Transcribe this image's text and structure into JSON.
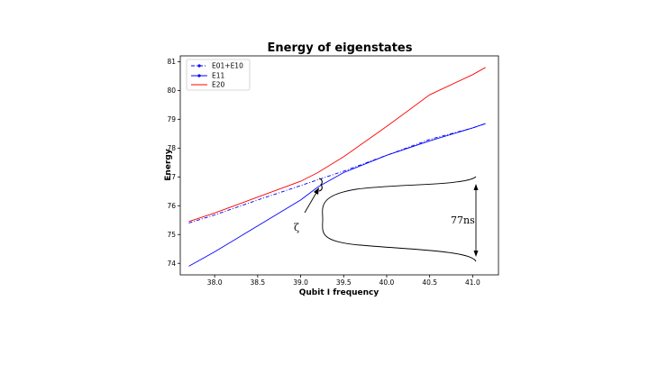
{
  "chart_data": {
    "type": "line",
    "title": "Energy of eigenstates",
    "xlabel": "Qubit I frequency",
    "ylabel": "Energy",
    "xlim": [
      37.6,
      41.3
    ],
    "ylim": [
      73.6,
      81.2
    ],
    "xticks": [
      "38.0",
      "38.5",
      "39.0",
      "39.5",
      "40.0",
      "40.5",
      "41.0"
    ],
    "yticks": [
      "74",
      "75",
      "76",
      "77",
      "78",
      "79",
      "80",
      "81"
    ],
    "legend_position": "top-left",
    "grid": false,
    "series": [
      {
        "name": "E01+E10",
        "color": "#0000ff",
        "style": "dash-dot with markers",
        "x": [
          37.7,
          38.0,
          38.5,
          39.0,
          39.2,
          39.5,
          40.0,
          40.5,
          41.0,
          41.15
        ],
        "y": [
          75.4,
          75.68,
          76.2,
          76.7,
          76.9,
          77.2,
          77.75,
          78.3,
          78.7,
          78.85
        ]
      },
      {
        "name": "E11",
        "color": "#0000ff",
        "style": "solid",
        "x": [
          37.7,
          38.0,
          38.5,
          39.0,
          39.2,
          39.5,
          40.0,
          40.5,
          41.0,
          41.15
        ],
        "y": [
          73.9,
          74.4,
          75.3,
          76.2,
          76.65,
          77.15,
          77.75,
          78.25,
          78.7,
          78.85
        ]
      },
      {
        "name": "E20",
        "color": "#ff0000",
        "style": "solid",
        "x": [
          37.7,
          38.0,
          38.5,
          39.0,
          39.2,
          39.5,
          40.0,
          40.5,
          41.0,
          41.15
        ],
        "y": [
          75.45,
          75.75,
          76.3,
          76.85,
          77.15,
          77.7,
          78.75,
          79.85,
          80.55,
          80.8
        ]
      }
    ],
    "annotations": [
      {
        "text": "ζ",
        "x": 38.85,
        "y": 75.25
      },
      {
        "text": "77ns",
        "x": 40.85,
        "y": 75.45
      }
    ]
  }
}
